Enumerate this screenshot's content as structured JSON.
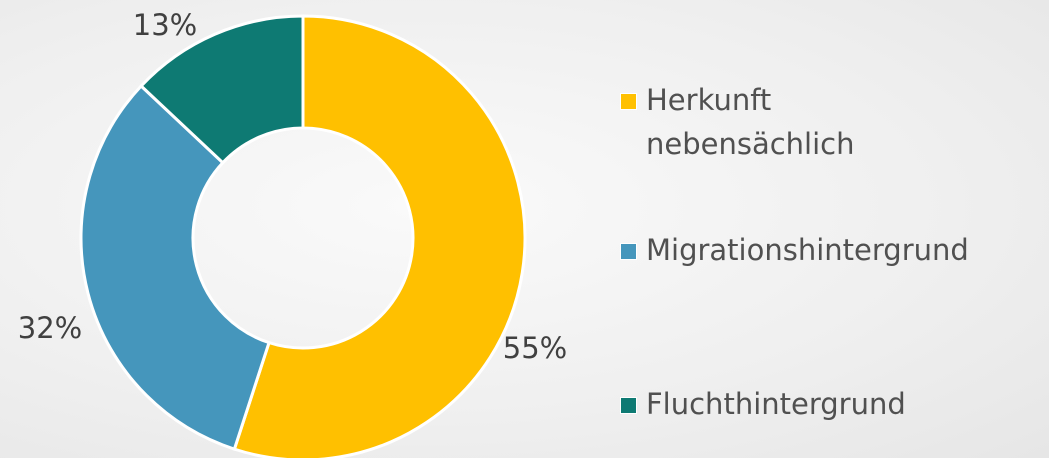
{
  "chart_data": {
    "type": "pie",
    "categories": [
      "Herkunft nebensächlich",
      "Migrationshintergrund",
      "Fluchthintergrund"
    ],
    "values": [
      55,
      32,
      13
    ],
    "value_labels": [
      "55%",
      "32%",
      "13%"
    ],
    "colors": [
      "#ffc000",
      "#4596bc",
      "#0e7a73"
    ]
  }
}
